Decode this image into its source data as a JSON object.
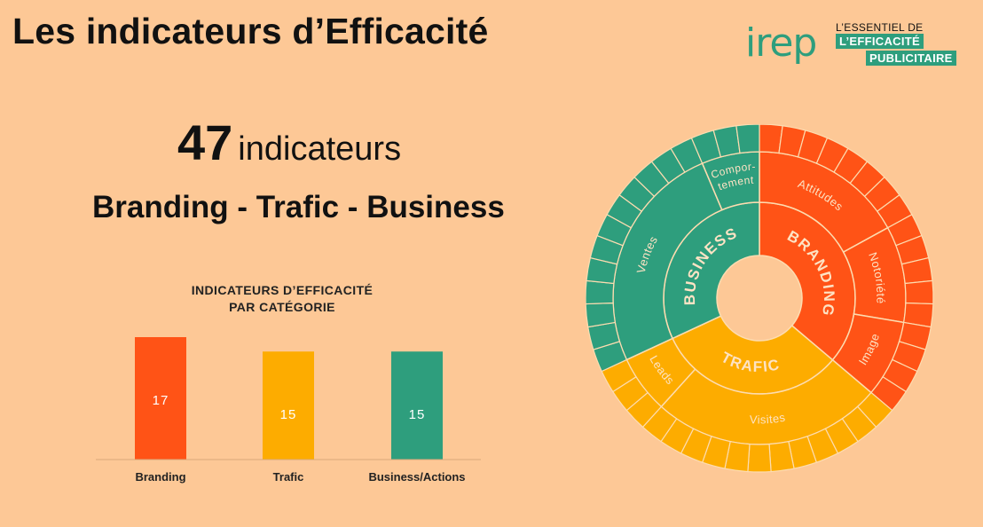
{
  "page": {
    "title": "Les indicateurs d’Efficacité",
    "count_number": "47",
    "count_label": "indicateurs",
    "categories_line": "Branding - Trafic - Business"
  },
  "logo": {
    "word": "irep",
    "line1": "L’ESSENTIEL DE",
    "line2": "L’EFFICACITÉ",
    "line3": "PUBLICITAIRE"
  },
  "colors": {
    "background": "#FDC896",
    "branding": "#FF5316",
    "trafic": "#FDAC00",
    "business": "#2E9E7D",
    "divider": "#FDDCB0"
  },
  "chart_data": [
    {
      "type": "bar",
      "title_lines": [
        "INDICATEURS D’EFFICACITÉ",
        "PAR CATÉGORIE"
      ],
      "categories": [
        "Branding",
        "Trafic",
        "Business/Actions"
      ],
      "values": [
        17,
        15,
        15
      ],
      "value_labels": [
        "17",
        "15",
        "15"
      ],
      "ylim": [
        0,
        17
      ],
      "colors": [
        "#FF5316",
        "#FDAC00",
        "#2E9E7D"
      ],
      "xlabel": "",
      "ylabel": "",
      "grid": false
    },
    {
      "type": "sunburst",
      "inner": [
        {
          "label": "BRANDING",
          "value": 17,
          "color": "#FF5316"
        },
        {
          "label": "TRAFIC",
          "value": 15,
          "color": "#FDAC00"
        },
        {
          "label": "BUSINESS",
          "value": 15,
          "color": "#2E9E7D"
        }
      ],
      "middle": [
        {
          "label": "Attitudes",
          "value": 8,
          "color": "#FF5316"
        },
        {
          "label": "Notoriété",
          "value": 5,
          "color": "#FF5316"
        },
        {
          "label": "Image",
          "value": 4,
          "color": "#FF5316"
        },
        {
          "label": "Visites",
          "value": 12,
          "color": "#FDAC00"
        },
        {
          "label": "Leads",
          "value": 3,
          "color": "#FDAC00"
        },
        {
          "label": "Ventes",
          "value": 12,
          "color": "#2E9E7D"
        },
        {
          "label": "Compor-",
          "label2": "tement",
          "value": 3,
          "color": "#2E9E7D"
        }
      ],
      "outer_segments": 47
    }
  ]
}
